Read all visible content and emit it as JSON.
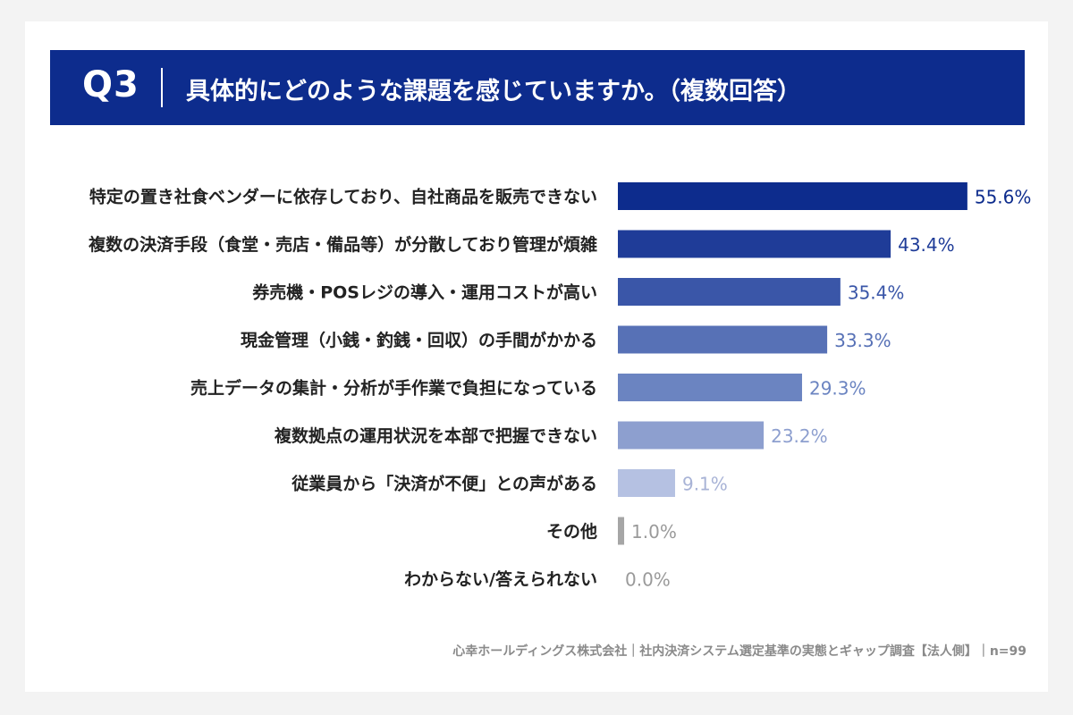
{
  "header": {
    "question_no": "Q3",
    "question": "具体的にどのような課題を感じていますか。（複数回答）"
  },
  "chart_data": {
    "type": "bar",
    "orientation": "horizontal",
    "title": "",
    "xlabel": "",
    "ylabel": "",
    "xlim": [
      0,
      60
    ],
    "grid": false,
    "categories": [
      "特定の置き社食ベンダーに依存しており、自社商品を販売できない",
      "複数の決済手段（食堂・売店・備品等）が分散しており管理が煩雑",
      "券売機・POSレジの導入・運用コストが高い",
      "現金管理（小銭・釣銭・回収）の手間がかかる",
      "売上データの集計・分析が手作業で負担になっている",
      "複数拠点の運用状況を本部で把握できない",
      "従業員から「決済が不便」との声がある",
      "その他",
      "わからない/答えられない"
    ],
    "values": [
      55.6,
      43.4,
      35.4,
      33.3,
      29.3,
      23.2,
      9.1,
      1.0,
      0.0
    ],
    "value_labels": [
      "55.6%",
      "43.4%",
      "35.4%",
      "33.3%",
      "29.3%",
      "23.2%",
      "9.1%",
      "1.0%",
      "0.0%"
    ],
    "bar_colors": [
      "#0d2c8d",
      "#1f3c98",
      "#3a56a8",
      "#5771b6",
      "#6b84c1",
      "#8d9fcf",
      "#b5c1e2",
      "#a6a6a6",
      "#a6a6a6"
    ],
    "label_colors": [
      "#0d2c8d",
      "#1f3c98",
      "#3a56a8",
      "#5771b6",
      "#6b84c1",
      "#8d9fcf",
      "#a8b3d6",
      "#9a9a9a",
      "#9a9a9a"
    ]
  },
  "footer": {
    "source": "心幸ホールディングス株式会社｜社内決済システム選定基準の実態とギャップ調査【法人側】｜n=99"
  }
}
